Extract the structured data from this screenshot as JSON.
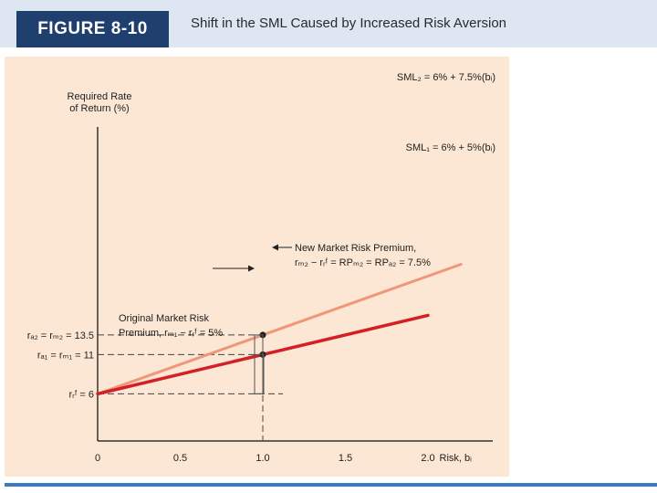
{
  "header": {
    "figure_label": "FIGURE 8-10",
    "title": "Shift in the SML Caused by Increased Risk Aversion"
  },
  "colors": {
    "header_bg": "#dde6f1",
    "badge_bg": "#1f3f6e",
    "panel_bg": "#fbe7d3",
    "sml1": "#d32027",
    "sml2": "#f0967a",
    "footer_line": "#3a7bbf"
  },
  "chart_data": {
    "type": "line",
    "ylabel_lines": [
      "Required Rate",
      "of Return (%)"
    ],
    "xlabel": "Risk, bᵢ",
    "xlim": [
      0,
      2.2
    ],
    "ylim": [
      0,
      21
    ],
    "xticks": [
      {
        "value": 0,
        "label": "0"
      },
      {
        "value": 0.5,
        "label": "0.5"
      },
      {
        "value": 1.0,
        "label": "1.0"
      },
      {
        "value": 1.5,
        "label": "1.5"
      },
      {
        "value": 2.0,
        "label": "2.0"
      }
    ],
    "y_reference_labels": [
      {
        "value": 13.5,
        "label": "rₐ₂ = rₘ₂ = 13.5"
      },
      {
        "value": 11,
        "label": "rₐ₁ = rₘ₁ = 11"
      },
      {
        "value": 6,
        "label": "rᵣᶠ = 6"
      }
    ],
    "series": [
      {
        "name": "SML₂ = 6% + 7.5%(bᵢ)",
        "x": [
          0,
          2.2
        ],
        "y": [
          6,
          22.5
        ],
        "color": "#f0967a"
      },
      {
        "name": "SML₁ = 6% + 5%(bᵢ)",
        "x": [
          0,
          2.0
        ],
        "y": [
          6,
          16
        ],
        "color": "#d32027"
      }
    ],
    "points": [
      {
        "x": 1.0,
        "y": 13.5
      },
      {
        "x": 1.0,
        "y": 11
      }
    ],
    "annotations": [
      {
        "lines": [
          "New Market Risk Premium,",
          "rₘ₂ − rᵣᶠ = RPₘ₂ = RPₐ₂ = 7.5%"
        ]
      },
      {
        "lines": [
          "Original Market Risk",
          "Premium, rₘ₁ − rᵣᶠ = 5%"
        ]
      }
    ]
  }
}
